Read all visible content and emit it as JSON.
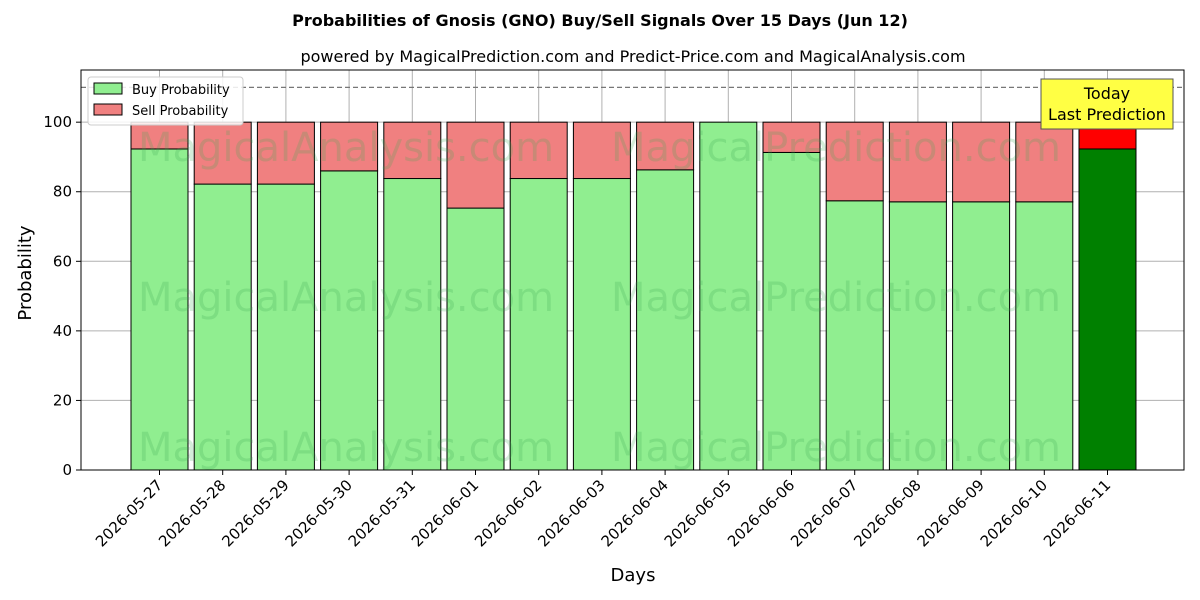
{
  "chart_data": {
    "type": "bar",
    "stacked": true,
    "title": "Probabilities of Gnosis (GNO) Buy/Sell Signals Over 15 Days (Jun 12)",
    "subtitle": "powered by MagicalPrediction.com and Predict-Price.com and MagicalAnalysis.com",
    "xlabel": "Days",
    "ylabel": "Probability",
    "ylim": [
      0,
      115
    ],
    "yticks": [
      0,
      20,
      40,
      60,
      80,
      100
    ],
    "reference_line": 110,
    "grid": true,
    "legend_position": "top-left",
    "categories": [
      "2026-05-27",
      "2026-05-28",
      "2026-05-29",
      "2026-05-30",
      "2026-05-31",
      "2026-06-01",
      "2026-06-02",
      "2026-06-03",
      "2026-06-04",
      "2026-06-05",
      "2026-06-06",
      "2026-06-07",
      "2026-06-08",
      "2026-06-09",
      "2026-06-10",
      "2026-06-11"
    ],
    "series": [
      {
        "name": "Buy Probability",
        "color": "#90ee90",
        "values": [
          92.3,
          82.2,
          82.2,
          86.0,
          83.8,
          75.3,
          83.8,
          83.8,
          86.3,
          100.0,
          91.3,
          77.4,
          77.1,
          77.1,
          77.1,
          92.3
        ]
      },
      {
        "name": "Sell Probability",
        "color": "#f08080",
        "values": [
          7.7,
          17.8,
          17.8,
          14.0,
          16.2,
          24.7,
          16.2,
          16.2,
          13.7,
          0.0,
          8.7,
          22.6,
          22.9,
          22.9,
          22.9,
          7.7
        ]
      }
    ],
    "highlight": {
      "index": 15,
      "buy_color": "#008000",
      "sell_color": "#ff0000"
    },
    "annotation": {
      "line1": "Today",
      "line2": "Last Prediction",
      "color": "#ffff44"
    },
    "watermarks": [
      "MagicalAnalysis.com",
      "MagicalPrediction.com"
    ]
  }
}
